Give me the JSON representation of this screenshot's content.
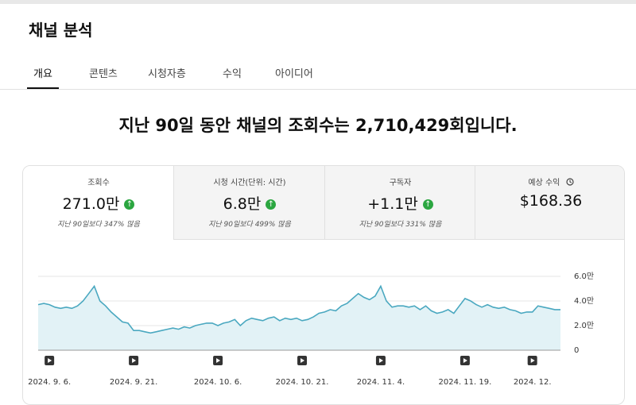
{
  "header": {
    "title": "채널 분석"
  },
  "tabs": [
    "개요",
    "콘텐츠",
    "시청자층",
    "수익",
    "아이디어"
  ],
  "headline": "지난 90일 동안 채널의 조회수는 2,710,429회입니다.",
  "metrics": [
    {
      "label": "조회수",
      "value": "271.0만",
      "note": "지난 90일보다 347% 많음"
    },
    {
      "label": "시청 시간(단위: 시간)",
      "value": "6.8만",
      "note": "지난 90일보다 499% 많음"
    },
    {
      "label": "구독자",
      "value": "+1.1만",
      "note": "지난 90일보다 331% 많음"
    },
    {
      "label": "예상 수익",
      "value": "$168.36"
    }
  ],
  "chart_data": {
    "type": "line",
    "color": "#4aa8c0",
    "grid": true,
    "ylim": [
      0,
      6
    ],
    "yticks": [
      0,
      {
        "value": 2,
        "label": "2.0만"
      },
      {
        "value": 4,
        "label": "4.0만"
      },
      {
        "value": 6,
        "label": "6.0만"
      }
    ],
    "categories": [
      null,
      null,
      "2024. 9. 6.",
      null,
      null,
      null,
      null,
      null,
      null,
      null,
      null,
      null,
      null,
      null,
      null,
      null,
      null,
      "2024. 9. 21.",
      null,
      null,
      null,
      null,
      null,
      null,
      null,
      null,
      null,
      null,
      null,
      null,
      null,
      null,
      "2024. 10. 6.",
      null,
      null,
      null,
      null,
      null,
      null,
      null,
      null,
      null,
      null,
      null,
      null,
      null,
      null,
      "2024. 10. 21.",
      null,
      null,
      null,
      null,
      null,
      null,
      null,
      null,
      null,
      null,
      null,
      null,
      null,
      "2024. 11. 4.",
      null,
      null,
      null,
      null,
      null,
      null,
      null,
      null,
      null,
      null,
      null,
      null,
      null,
      null,
      "2024. 11. 19.",
      null,
      null,
      null,
      null,
      null,
      null,
      null,
      null,
      null,
      null,
      null,
      "2024. 12.",
      null,
      null,
      null,
      null,
      null
    ],
    "values": [
      3.7,
      3.8,
      3.7,
      3.5,
      3.4,
      3.5,
      3.4,
      3.6,
      4.0,
      4.6,
      5.2,
      4.0,
      3.6,
      3.1,
      2.7,
      2.3,
      2.2,
      1.6,
      1.6,
      1.5,
      1.4,
      1.5,
      1.6,
      1.7,
      1.8,
      1.7,
      1.9,
      1.8,
      2.0,
      2.1,
      2.2,
      2.2,
      2.0,
      2.2,
      2.3,
      2.5,
      2.0,
      2.4,
      2.6,
      2.5,
      2.4,
      2.6,
      2.7,
      2.4,
      2.6,
      2.5,
      2.6,
      2.4,
      2.5,
      2.7,
      3.0,
      3.1,
      3.3,
      3.2,
      3.6,
      3.8,
      4.2,
      4.6,
      4.3,
      4.1,
      4.4,
      5.2,
      4.0,
      3.5,
      3.6,
      3.6,
      3.5,
      3.6,
      3.3,
      3.6,
      3.2,
      3.0,
      3.1,
      3.3,
      3.0,
      3.6,
      4.2,
      4.0,
      3.7,
      3.5,
      3.7,
      3.5,
      3.4,
      3.5,
      3.3,
      3.2,
      3.0,
      3.1,
      3.1,
      3.6,
      3.5,
      3.4,
      3.3,
      3.3
    ]
  }
}
